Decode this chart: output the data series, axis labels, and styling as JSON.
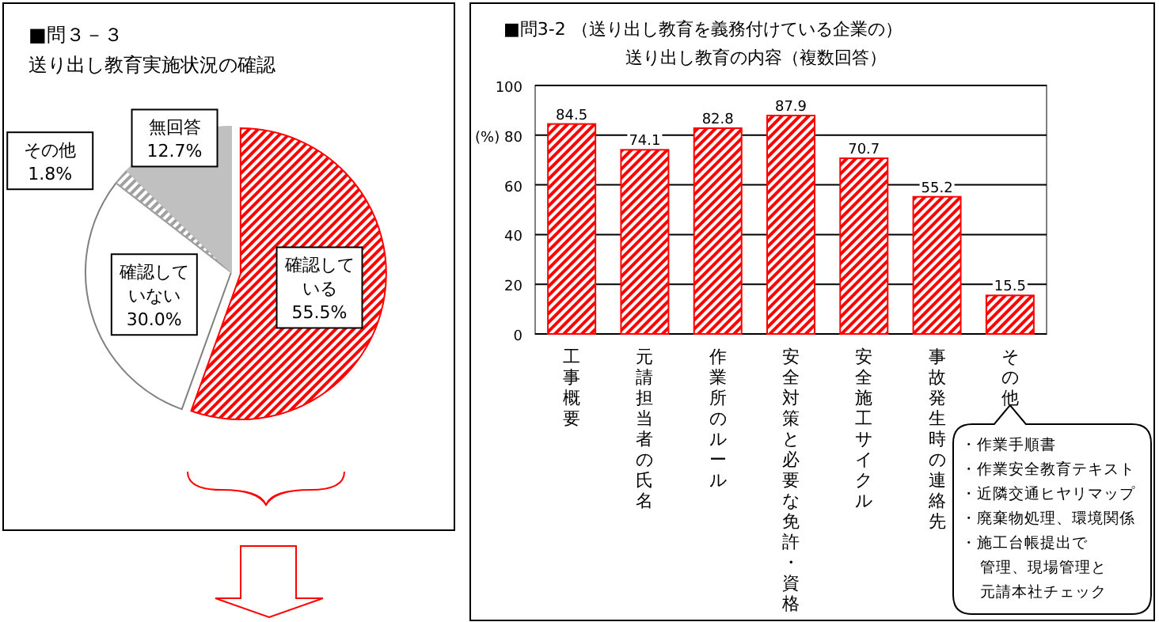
{
  "chart_data": [
    {
      "type": "pie",
      "title": "■問３－３",
      "subtitle": "送り出し教育実施状況の確認",
      "categories": [
        "確認している",
        "確認していない",
        "その他",
        "無回答"
      ],
      "values": [
        55.5,
        30.0,
        1.8,
        12.7
      ],
      "value_labels": [
        "55.5%",
        "30.0%",
        "1.8%",
        "12.7%"
      ],
      "colors": [
        "#ff0000",
        "#ffffff",
        "#a0a0a0",
        "#c0c0c0"
      ]
    },
    {
      "type": "bar",
      "title": "■問3-2 （送り出し教育を義務付けている企業の）",
      "subtitle": "送り出し教育の内容（複数回答）",
      "ylabel": "(%)",
      "categories": [
        "工事概要",
        "元請担当者の氏名",
        "作業所のルール",
        "安全対策と必要な免許・資格",
        "安全施工サイクル",
        "事故発生時の連絡先",
        "その他"
      ],
      "values": [
        84.5,
        74.1,
        82.8,
        87.9,
        70.7,
        55.2,
        15.5
      ],
      "color": "#ff0000",
      "data_labels": true,
      "ylim": [
        0,
        100
      ],
      "yticks": [
        0,
        20,
        40,
        60,
        80,
        100
      ],
      "grid": "y",
      "annotations": [
        "・作業手順書",
        "・作業安全教育テキスト",
        "・近隣交通ヒヤリマップ",
        "・廃棄物処理、環境関係",
        "・施工台帳提出で",
        "管理、現場管理と",
        "元請本社チェック"
      ]
    }
  ]
}
